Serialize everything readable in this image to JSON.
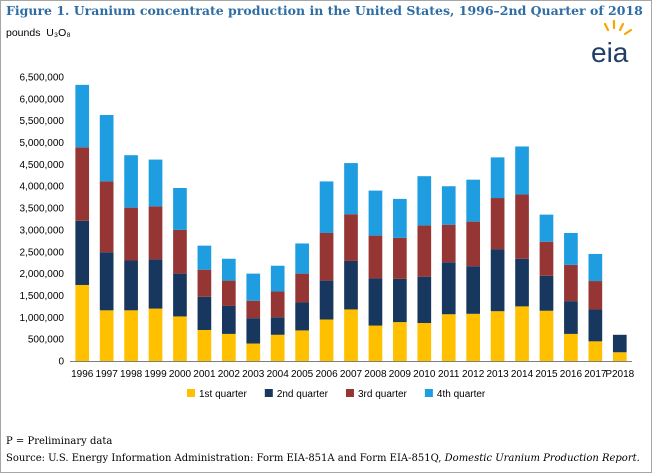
{
  "header": {
    "title": "Figure 1. Uranium concentrate production in the United States, 1996–2nd Quarter of 2018",
    "units_prefix": "pounds",
    "units_formula": "U₃O₈",
    "logo_text": "eia"
  },
  "footer": {
    "note": "P = Preliminary data",
    "source_prefix": "Source: U.S. Energy Information Administration: Form EIA-851A and Form EIA-851Q, ",
    "source_title": "Domestic Uranium Production Report."
  },
  "chart_data": {
    "type": "bar",
    "stacked": true,
    "categories": [
      "1996",
      "1997",
      "1998",
      "1999",
      "2000",
      "2001",
      "2002",
      "2003",
      "2004",
      "2005",
      "2006",
      "2007",
      "2008",
      "2009",
      "2010",
      "2011",
      "2012",
      "2013",
      "2014",
      "2015",
      "2016",
      "2017",
      "P2018"
    ],
    "series": [
      {
        "name": "1st quarter",
        "color": "#ffc000",
        "values": [
          1740000,
          1160000,
          1160000,
          1200000,
          1020000,
          710000,
          620000,
          400000,
          600000,
          700000,
          950000,
          1180000,
          810000,
          890000,
          870000,
          1070000,
          1080000,
          1140000,
          1250000,
          1150000,
          620000,
          450000,
          200000
        ]
      },
      {
        "name": "2nd quarter",
        "color": "#17375e",
        "values": [
          1470000,
          1330000,
          1140000,
          1130000,
          980000,
          760000,
          640000,
          580000,
          400000,
          640000,
          890000,
          1110000,
          1080000,
          990000,
          1060000,
          1190000,
          1090000,
          1420000,
          1090000,
          800000,
          750000,
          730000,
          400000
        ]
      },
      {
        "name": "3rd quarter",
        "color": "#963634",
        "values": [
          1680000,
          1620000,
          1210000,
          1210000,
          1000000,
          620000,
          580000,
          400000,
          590000,
          660000,
          1090000,
          1070000,
          980000,
          940000,
          1170000,
          860000,
          1020000,
          1170000,
          1470000,
          780000,
          830000,
          650000,
          0
        ]
      },
      {
        "name": "4th quarter",
        "color": "#1e9ee0",
        "values": [
          1430000,
          1520000,
          1200000,
          1070000,
          960000,
          550000,
          500000,
          620000,
          590000,
          690000,
          1180000,
          1170000,
          1030000,
          890000,
          1130000,
          880000,
          960000,
          930000,
          1100000,
          620000,
          730000,
          620000,
          0
        ]
      }
    ],
    "ylim": [
      0,
      6500000
    ],
    "yticks": [
      "0",
      "500,000",
      "1,000,000",
      "1,500,000",
      "2,000,000",
      "2,500,000",
      "3,000,000",
      "3,500,000",
      "4,000,000",
      "4,500,000",
      "5,000,000",
      "5,500,000",
      "6,000,000",
      "6,500,000"
    ],
    "grid": false,
    "legend_position": "bottom"
  }
}
